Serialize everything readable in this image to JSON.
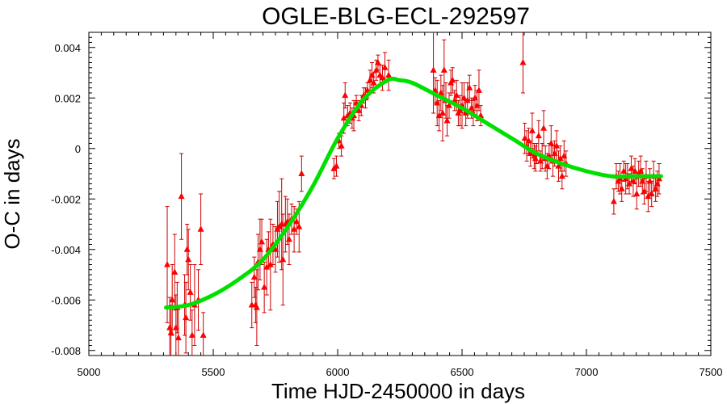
{
  "chart_data": {
    "type": "scatter",
    "title": "OGLE-BLG-ECL-292597",
    "xlabel": "Time HJD-2450000 in days",
    "ylabel": "O-C in days",
    "xlim": [
      5000,
      7500
    ],
    "ylim": [
      -0.0082,
      0.0046
    ],
    "xticks": [
      5000,
      5500,
      6000,
      6500,
      7000,
      7500
    ],
    "yticks": [
      -0.008,
      -0.006,
      -0.004,
      -0.002,
      0,
      0.002,
      0.004
    ],
    "xtick_labels": [
      "5000",
      "5500",
      "6000",
      "6500",
      "7000",
      "7500"
    ],
    "ytick_labels": [
      "-0.008",
      "-0.006",
      "-0.004",
      "-0.002",
      "0",
      "0.002",
      "0.004"
    ],
    "grid": false,
    "colors": {
      "points": "#ff0000",
      "errorbars": "#cc0000",
      "fit": "#00e000"
    },
    "series": [
      {
        "type": "scatter-errorbar",
        "marker": "triangle",
        "points": [
          [
            5315,
            -0.0046,
            0.0023
          ],
          [
            5325,
            -0.0071,
            0.0012
          ],
          [
            5330,
            -0.0073,
            0.0011
          ],
          [
            5335,
            -0.006,
            0.0014
          ],
          [
            5345,
            -0.0049,
            0.0015
          ],
          [
            5350,
            -0.0071,
            0.0013
          ],
          [
            5355,
            -0.0063,
            0.001
          ],
          [
            5360,
            -0.0075,
            0.0012
          ],
          [
            5372,
            -0.0019,
            0.0017
          ],
          [
            5385,
            -0.0062,
            0.0012
          ],
          [
            5390,
            -0.0067,
            0.0014
          ],
          [
            5395,
            -0.004,
            0.001
          ],
          [
            5400,
            -0.0044,
            0.0012
          ],
          [
            5408,
            -0.0057,
            0.0011
          ],
          [
            5415,
            -0.0074,
            0.001
          ],
          [
            5425,
            -0.0062,
            0.0016
          ],
          [
            5440,
            -0.006,
            0.0012
          ],
          [
            5450,
            -0.0032,
            0.0014
          ],
          [
            5460,
            -0.0074,
            0.0009
          ],
          [
            5655,
            -0.0062,
            0.0009
          ],
          [
            5665,
            -0.0051,
            0.0008
          ],
          [
            5670,
            -0.0062,
            0.0007
          ],
          [
            5675,
            -0.0063,
            0.0015
          ],
          [
            5680,
            -0.0045,
            0.0011
          ],
          [
            5688,
            -0.004,
            0.0012
          ],
          [
            5695,
            -0.0037,
            0.0009
          ],
          [
            5705,
            -0.0055,
            0.001
          ],
          [
            5715,
            -0.0047,
            0.0011
          ],
          [
            5722,
            -0.004,
            0.0007
          ],
          [
            5730,
            -0.0046,
            0.0018
          ],
          [
            5740,
            -0.0038,
            0.0008
          ],
          [
            5750,
            -0.004,
            0.0009
          ],
          [
            5758,
            -0.0032,
            0.0011
          ],
          [
            5765,
            -0.0031,
            0.0014
          ],
          [
            5775,
            -0.003,
            0.0018
          ],
          [
            5780,
            -0.0044,
            0.0018
          ],
          [
            5790,
            -0.003,
            0.0011
          ],
          [
            5798,
            -0.0029,
            0.0009
          ],
          [
            5805,
            -0.0036,
            0.001
          ],
          [
            5815,
            -0.0028,
            0.0006
          ],
          [
            5825,
            -0.0032,
            0.0009
          ],
          [
            5835,
            -0.0029,
            0.0005
          ],
          [
            5845,
            -0.0031,
            0.001
          ],
          [
            5855,
            -0.001,
            0.0007
          ],
          [
            5985,
            -0.0008,
            0.0004
          ],
          [
            5995,
            -0.0007,
            0.0004
          ],
          [
            6005,
            0.0003,
            0.0003
          ],
          [
            6015,
            0.0001,
            0.0004
          ],
          [
            6025,
            0.0012,
            0.0006
          ],
          [
            6030,
            0.0021,
            0.0005
          ],
          [
            6040,
            0.0013,
            0.0004
          ],
          [
            6050,
            0.0014,
            0.0004
          ],
          [
            6058,
            0.0012,
            0.0004
          ],
          [
            6065,
            0.0013,
            0.0006
          ],
          [
            6075,
            0.0018,
            0.0003
          ],
          [
            6085,
            0.0015,
            0.0004
          ],
          [
            6095,
            0.0017,
            0.0004
          ],
          [
            6105,
            0.0021,
            0.0003
          ],
          [
            6112,
            0.002,
            0.0004
          ],
          [
            6120,
            0.0023,
            0.0003
          ],
          [
            6130,
            0.0027,
            0.0004
          ],
          [
            6138,
            0.0029,
            0.0005
          ],
          [
            6145,
            0.0026,
            0.0004
          ],
          [
            6155,
            0.0031,
            0.0004
          ],
          [
            6162,
            0.0034,
            0.0003
          ],
          [
            6170,
            0.0029,
            0.0004
          ],
          [
            6180,
            0.0028,
            0.0005
          ],
          [
            6190,
            0.0032,
            0.0006
          ],
          [
            6205,
            0.0029,
            0.0006
          ],
          [
            6385,
            0.0031,
            0.0017
          ],
          [
            6392,
            0.0023,
            0.0005
          ],
          [
            6400,
            0.0018,
            0.0009
          ],
          [
            6408,
            0.0013,
            0.0006
          ],
          [
            6415,
            0.0022,
            0.0007
          ],
          [
            6422,
            0.0014,
            0.0011
          ],
          [
            6428,
            0.0031,
            0.0012
          ],
          [
            6435,
            0.0019,
            0.0007
          ],
          [
            6440,
            0.0011,
            0.0006
          ],
          [
            6448,
            0.0017,
            0.0005
          ],
          [
            6455,
            0.0026,
            0.0005
          ],
          [
            6462,
            0.0027,
            0.0005
          ],
          [
            6470,
            0.0019,
            0.0004
          ],
          [
            6478,
            0.0021,
            0.0006
          ],
          [
            6485,
            0.0014,
            0.0005
          ],
          [
            6492,
            0.0015,
            0.0006
          ],
          [
            6500,
            0.0017,
            0.0009
          ],
          [
            6508,
            0.002,
            0.0006
          ],
          [
            6515,
            0.0014,
            0.0005
          ],
          [
            6522,
            0.0019,
            0.0007
          ],
          [
            6530,
            0.0024,
            0.0005
          ],
          [
            6538,
            0.0016,
            0.0004
          ],
          [
            6545,
            0.0014,
            0.0005
          ],
          [
            6552,
            0.002,
            0.0005
          ],
          [
            6560,
            0.0017,
            0.0006
          ],
          [
            6568,
            0.0023,
            0.0008
          ],
          [
            6575,
            0.0013,
            0.0004
          ],
          [
            6745,
            0.0034,
            0.0012
          ],
          [
            6752,
            0.0004,
            0.0006
          ],
          [
            6760,
            0.0001,
            0.0006
          ],
          [
            6768,
            0.0003,
            0.0005
          ],
          [
            6775,
            -0.0002,
            0.0005
          ],
          [
            6782,
            0.0007,
            0.0007
          ],
          [
            6790,
            -0.0003,
            0.0005
          ],
          [
            6795,
            -0.0004,
            0.0005
          ],
          [
            6800,
            -0.0002,
            0.0004
          ],
          [
            6808,
            0.0005,
            0.0006
          ],
          [
            6815,
            -0.0005,
            0.0004
          ],
          [
            6822,
            -0.0003,
            0.0005
          ],
          [
            6828,
            0.0008,
            0.0007
          ],
          [
            6835,
            -0.0004,
            0.0005
          ],
          [
            6842,
            -0.0007,
            0.0005
          ],
          [
            6850,
            -0.0003,
            0.0005
          ],
          [
            6858,
            0.0002,
            0.0007
          ],
          [
            6865,
            -0.0005,
            0.0006
          ],
          [
            6872,
            -0.0002,
            0.0005
          ],
          [
            6880,
            0.0001,
            0.0006
          ],
          [
            6888,
            -0.0007,
            0.0006
          ],
          [
            6895,
            -0.0004,
            0.0005
          ],
          [
            6902,
            -0.0011,
            0.0005
          ],
          [
            6910,
            -0.0003,
            0.0006
          ],
          [
            6918,
            -0.0006,
            0.0005
          ],
          [
            7110,
            -0.0021,
            0.0005
          ],
          [
            7120,
            -0.0011,
            0.0005
          ],
          [
            7128,
            -0.0013,
            0.0004
          ],
          [
            7135,
            -0.0012,
            0.0006
          ],
          [
            7142,
            -0.0016,
            0.0005
          ],
          [
            7150,
            -0.0009,
            0.0004
          ],
          [
            7158,
            -0.0012,
            0.0006
          ],
          [
            7165,
            -0.0011,
            0.0005
          ],
          [
            7172,
            -0.0014,
            0.0004
          ],
          [
            7180,
            -0.0008,
            0.0005
          ],
          [
            7188,
            -0.0013,
            0.0006
          ],
          [
            7195,
            -0.0009,
            0.0005
          ],
          [
            7202,
            -0.0018,
            0.0006
          ],
          [
            7210,
            -0.001,
            0.0005
          ],
          [
            7218,
            -0.0009,
            0.0006
          ],
          [
            7225,
            -0.0013,
            0.0005
          ],
          [
            7232,
            -0.0017,
            0.0005
          ],
          [
            7240,
            -0.0011,
            0.0006
          ],
          [
            7248,
            -0.0019,
            0.0006
          ],
          [
            7255,
            -0.0013,
            0.0005
          ],
          [
            7262,
            -0.0018,
            0.0005
          ],
          [
            7270,
            -0.0011,
            0.0006
          ],
          [
            7278,
            -0.0016,
            0.0005
          ],
          [
            7285,
            -0.0014,
            0.0005
          ],
          [
            7292,
            -0.0012,
            0.0006
          ]
        ]
      },
      {
        "type": "line",
        "fit": [
          [
            5310,
            -0.0063
          ],
          [
            5400,
            -0.0062
          ],
          [
            5500,
            -0.0058
          ],
          [
            5600,
            -0.0052
          ],
          [
            5700,
            -0.0044
          ],
          [
            5800,
            -0.0031
          ],
          [
            5900,
            -0.0015
          ],
          [
            6000,
            0.0004
          ],
          [
            6100,
            0.0019
          ],
          [
            6200,
            0.0027
          ],
          [
            6250,
            0.0027
          ],
          [
            6300,
            0.0026
          ],
          [
            6400,
            0.0021
          ],
          [
            6500,
            0.0016
          ],
          [
            6600,
            0.001
          ],
          [
            6700,
            0.0004
          ],
          [
            6800,
            -0.0002
          ],
          [
            6900,
            -0.0006
          ],
          [
            7000,
            -0.0009
          ],
          [
            7100,
            -0.0011
          ],
          [
            7200,
            -0.0011
          ],
          [
            7300,
            -0.0011
          ]
        ]
      }
    ]
  }
}
